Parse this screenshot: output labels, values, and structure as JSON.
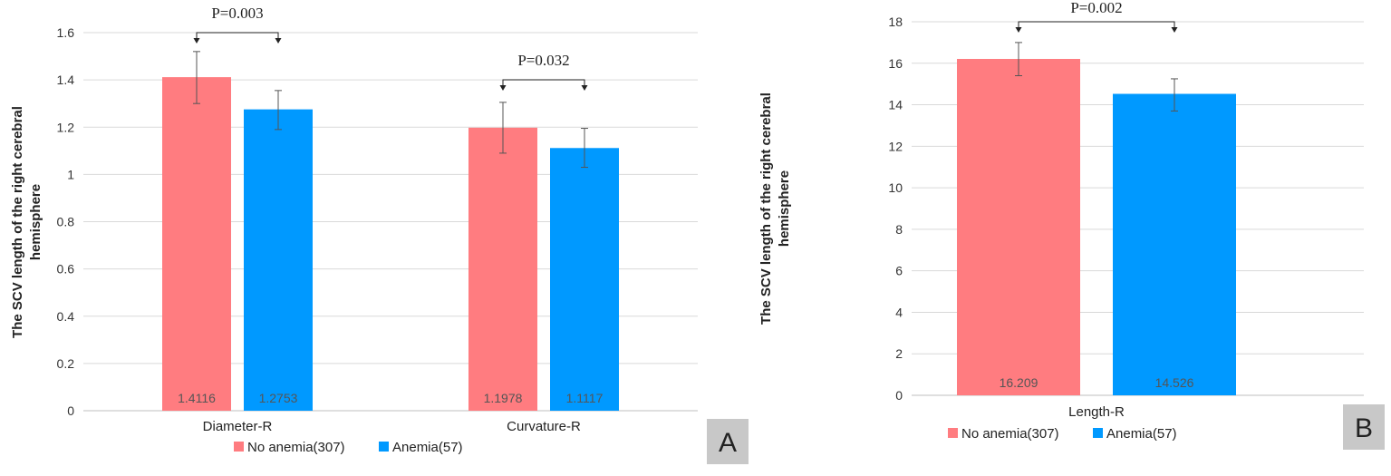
{
  "colors": {
    "no_anemia": "#ff7c80",
    "anemia": "#0099ff",
    "grid": "#d9d9d9",
    "tick": "#333333",
    "panel_label_bg": "#c8c8c8"
  },
  "chart_data": [
    {
      "type": "bar",
      "panel_label": "A",
      "ylabel": "The SCV length of the right cerebral hemisphere",
      "ylim": [
        0,
        1.6
      ],
      "yticks": [
        "0",
        "0.2",
        "0.4",
        "0.6",
        "0.8",
        "1",
        "1.2",
        "1.4",
        "1.6"
      ],
      "yticks_values": [
        0,
        0.2,
        0.4,
        0.6,
        0.8,
        1,
        1.2,
        1.4,
        1.6
      ],
      "grid": true,
      "legend_position": "bottom",
      "categories": [
        "Diameter-R",
        "Curvature-R"
      ],
      "series": [
        {
          "name": "No anemia(307)",
          "values": [
            1.4116,
            1.1978
          ],
          "labels": [
            "1.4116",
            "1.1978"
          ],
          "err_low": [
            1.3,
            1.09
          ],
          "err_high": [
            1.52,
            1.305
          ]
        },
        {
          "name": "Anemia(57)",
          "values": [
            1.2753,
            1.1117
          ],
          "labels": [
            "1.2753",
            "1.1117"
          ],
          "err_low": [
            1.19,
            1.03
          ],
          "err_high": [
            1.355,
            1.195
          ]
        }
      ],
      "annotations": [
        {
          "text": "P=0.003",
          "category_index": 0,
          "y": 1.6
        },
        {
          "text": "P=0.032",
          "category_index": 1,
          "y": 1.41
        }
      ]
    },
    {
      "type": "bar",
      "panel_label": "B",
      "ylabel": "The SCV length of the right cerebral hemisphere",
      "ylim": [
        0,
        18
      ],
      "yticks": [
        "0",
        "2",
        "4",
        "6",
        "8",
        "10",
        "12",
        "14",
        "16",
        "18"
      ],
      "yticks_values": [
        0,
        2,
        4,
        6,
        8,
        10,
        12,
        14,
        16,
        18
      ],
      "grid": true,
      "legend_position": "bottom",
      "categories": [
        "Length-R"
      ],
      "series": [
        {
          "name": "No anemia(307)",
          "values": [
            16.209
          ],
          "labels": [
            "16.209"
          ],
          "err_low": [
            15.4
          ],
          "err_high": [
            17.0
          ]
        },
        {
          "name": "Anemia(57)",
          "values": [
            14.526
          ],
          "labels": [
            "14.526"
          ],
          "err_low": [
            13.7
          ],
          "err_high": [
            15.25
          ]
        }
      ],
      "annotations": [
        {
          "text": "P=0.002",
          "category_index": 0,
          "y": 18.0
        }
      ]
    }
  ]
}
